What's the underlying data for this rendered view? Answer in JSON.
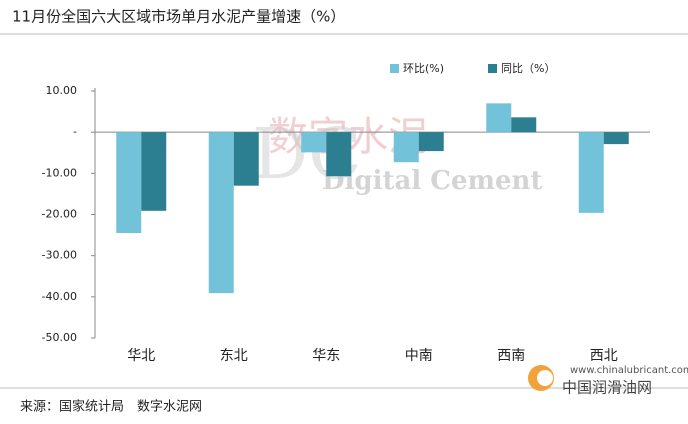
{
  "chart_data": {
    "type": "bar",
    "title": "11月份全国六大区域市场单月水泥产量增速（%）",
    "categories": [
      "华北",
      "东北",
      "华东",
      "中南",
      "西南",
      "西北"
    ],
    "series": [
      {
        "name": "环比(%)",
        "color": "#72c3d9",
        "values": [
          -24.5,
          -39.1,
          -4.9,
          -7.3,
          7.0,
          -19.6
        ]
      },
      {
        "name": "同比（%）",
        "color": "#2c7f91",
        "values": [
          -19.1,
          -13.0,
          -10.7,
          -4.6,
          3.6,
          -2.9
        ]
      }
    ],
    "ylim": [
      -50,
      10
    ],
    "yticks": [
      {
        "value": 10,
        "label": "10.00"
      },
      {
        "value": 0,
        "label": "-"
      },
      {
        "value": -10,
        "label": "-10.00"
      },
      {
        "value": -20,
        "label": "-20.00"
      },
      {
        "value": -30,
        "label": "-30.00"
      },
      {
        "value": -40,
        "label": "-40.00"
      },
      {
        "value": -50,
        "label": "-50.00"
      }
    ],
    "grid": false,
    "source": "来源：国家统计局　数字水泥网",
    "watermark_cn": "数字水泥",
    "watermark_en": "Digital Cement",
    "logo_url": "www.chinalubricant.com",
    "logo_name": "中国润滑油网"
  }
}
